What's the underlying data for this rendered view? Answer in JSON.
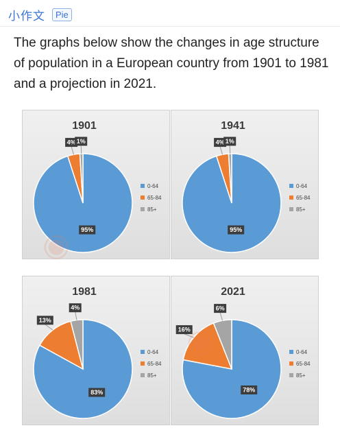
{
  "header": {
    "title": "小作文",
    "tag": "Pie"
  },
  "intro": "The graphs below show the changes in age structure of population in a European country from 1901 to 1981 and a projection in 2021.",
  "colors": {
    "age_0_64": "#5b9bd5",
    "age_65_84": "#ed7d31",
    "age_85_plus": "#a5a5a5"
  },
  "chart_data": [
    {
      "type": "pie",
      "title": "1901",
      "categories": [
        "0-64",
        "65-84",
        "85+"
      ],
      "values": [
        95,
        4,
        1
      ],
      "labels": [
        "95%",
        "4%",
        "1%"
      ],
      "legend": "right"
    },
    {
      "type": "pie",
      "title": "1941",
      "categories": [
        "0-64",
        "65-84",
        "85+"
      ],
      "values": [
        95,
        4,
        1
      ],
      "labels": [
        "95%",
        "4%",
        "1%"
      ],
      "legend": "right"
    },
    {
      "type": "pie",
      "title": "1981",
      "categories": [
        "0-64",
        "65-84",
        "85+"
      ],
      "values": [
        83,
        13,
        4
      ],
      "labels": [
        "83%",
        "13%",
        "4%"
      ],
      "legend": "right"
    },
    {
      "type": "pie",
      "title": "2021",
      "categories": [
        "0-64",
        "65-84",
        "85+"
      ],
      "values": [
        78,
        16,
        6
      ],
      "labels": [
        "78%",
        "16%",
        "6%"
      ],
      "legend": "right"
    }
  ]
}
